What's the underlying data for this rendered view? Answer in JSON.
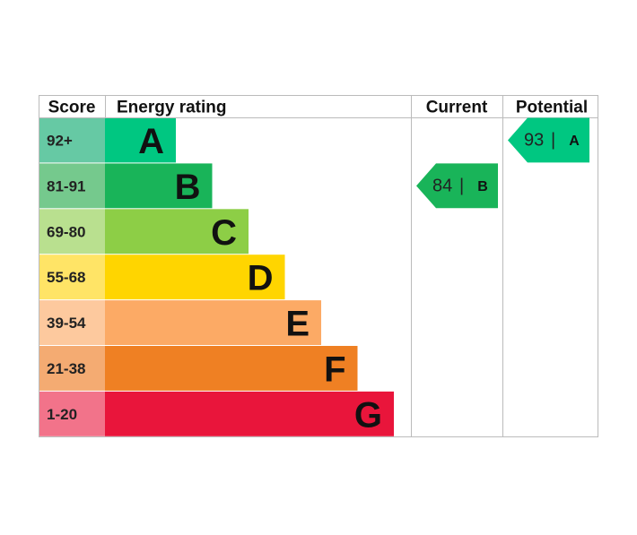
{
  "header": {
    "score": "Score",
    "energy_rating": "Energy rating",
    "current": "Current",
    "potential": "Potential"
  },
  "bands": [
    {
      "score": "92+",
      "letter": "A",
      "color": "#00c781",
      "score_color": "#66c9a4"
    },
    {
      "score": "81-91",
      "letter": "B",
      "color": "#19b459",
      "score_color": "#75c98d"
    },
    {
      "score": "69-80",
      "letter": "C",
      "color": "#8dce46",
      "score_color": "#b9e08f"
    },
    {
      "score": "55-68",
      "letter": "D",
      "color": "#ffd500",
      "score_color": "#ffe466"
    },
    {
      "score": "39-54",
      "letter": "E",
      "color": "#fcaa65",
      "score_color": "#fdc99e"
    },
    {
      "score": "21-38",
      "letter": "F",
      "color": "#ef8023",
      "score_color": "#f4ab72"
    },
    {
      "score": "1-20",
      "letter": "G",
      "color": "#e9153b",
      "score_color": "#f2738a"
    }
  ],
  "current": {
    "value": 84,
    "letter": "B"
  },
  "potential": {
    "value": 93,
    "letter": "A"
  },
  "separator": "|"
}
